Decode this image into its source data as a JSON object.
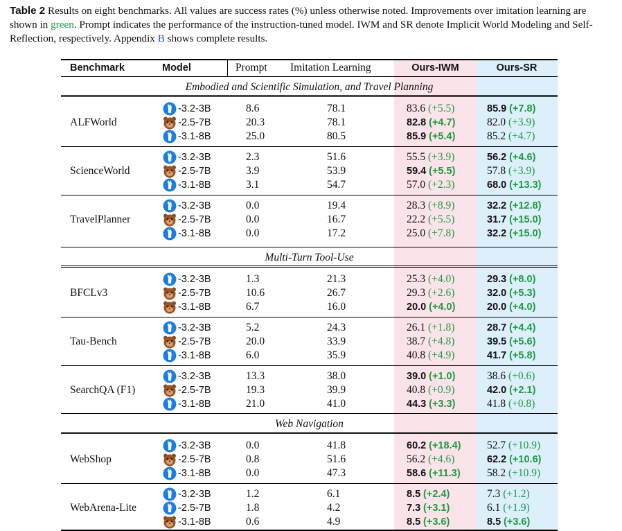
{
  "caption": {
    "label": "Table 2",
    "part1": "Results on eight benchmarks. All values are success rates (%) unless otherwise noted. Improvements over imitation learning are shown in ",
    "green_word": "green",
    "part2": ". Prompt indicates the performance of the instruction-tuned model. IWM and SR denote Implicit World Modeling and Self-Reflection, respectively. Appendix ",
    "appendix_ref": "B",
    "part3": " shows complete results."
  },
  "headers": {
    "benchmark": "Benchmark",
    "model": "Model",
    "prompt": "Prompt",
    "imitation": "Imitation Learning",
    "iwm": "Ours-IWM",
    "sr": "Ours-SR"
  },
  "colors": {
    "iwm_bg": "#fbe3ea",
    "sr_bg": "#dceffb",
    "improvement": "#1f9a3f"
  },
  "sections": [
    {
      "title": "Embodied and Scientific Simulation, and Travel Planning",
      "groups": [
        0,
        1,
        2
      ]
    },
    {
      "title": "Multi-Turn Tool-Use",
      "groups": [
        3,
        4,
        5
      ]
    },
    {
      "title": "Web Navigation",
      "groups": [
        6,
        7
      ]
    }
  ],
  "groups": [
    {
      "benchmark": "ALFWorld",
      "rows": [
        {
          "icon": "llama-icon",
          "model": "-3.2-3B",
          "prompt": "8.6",
          "imitation": "78.1",
          "iwm": "83.6",
          "iwm_imp": "(+5.5)",
          "iwm_bold": false,
          "sr": "85.9",
          "sr_imp": "(+7.8)",
          "sr_bold": true
        },
        {
          "icon": "qwen-bear-icon",
          "model": "-2.5-7B",
          "prompt": "20.3",
          "imitation": "78.1",
          "iwm": "82.8",
          "iwm_imp": "(+4.7)",
          "iwm_bold": true,
          "sr": "82.0",
          "sr_imp": "(+3.9)",
          "sr_bold": false
        },
        {
          "icon": "llama-icon",
          "model": "-3.1-8B",
          "prompt": "25.0",
          "imitation": "80.5",
          "iwm": "85.9",
          "iwm_imp": "(+5.4)",
          "iwm_bold": true,
          "sr": "85.2",
          "sr_imp": "(+4.7)",
          "sr_bold": false
        }
      ]
    },
    {
      "benchmark": "ScienceWorld",
      "rows": [
        {
          "icon": "llama-icon",
          "model": "-3.2-3B",
          "prompt": "2.3",
          "imitation": "51.6",
          "iwm": "55.5",
          "iwm_imp": "(+3.9)",
          "iwm_bold": false,
          "sr": "56.2",
          "sr_imp": "(+4.6)",
          "sr_bold": true
        },
        {
          "icon": "qwen-bear-icon",
          "model": "-2.5-7B",
          "prompt": "3.9",
          "imitation": "53.9",
          "iwm": "59.4",
          "iwm_imp": "(+5.5)",
          "iwm_bold": true,
          "sr": "57.8",
          "sr_imp": "(+3.9)",
          "sr_bold": false
        },
        {
          "icon": "llama-icon",
          "model": "-3.1-8B",
          "prompt": "3.1",
          "imitation": "54.7",
          "iwm": "57.0",
          "iwm_imp": "(+2.3)",
          "iwm_bold": false,
          "sr": "68.0",
          "sr_imp": "(+13.3)",
          "sr_bold": true
        }
      ]
    },
    {
      "benchmark": "TravelPlanner",
      "rows": [
        {
          "icon": "llama-icon",
          "model": "-3.2-3B",
          "prompt": "0.0",
          "imitation": "19.4",
          "iwm": "28.3",
          "iwm_imp": "(+8.9)",
          "iwm_bold": false,
          "sr": "32.2",
          "sr_imp": "(+12.8)",
          "sr_bold": true
        },
        {
          "icon": "qwen-bear-icon",
          "model": "-2.5-7B",
          "prompt": "0.0",
          "imitation": "16.7",
          "iwm": "22.2",
          "iwm_imp": "(+5.5)",
          "iwm_bold": false,
          "sr": "31.7",
          "sr_imp": "(+15.0)",
          "sr_bold": true
        },
        {
          "icon": "llama-icon",
          "model": "-3.1-8B",
          "prompt": "0.0",
          "imitation": "17.2",
          "iwm": "25.0",
          "iwm_imp": "(+7.8)",
          "iwm_bold": false,
          "sr": "32.2",
          "sr_imp": "(+15.0)",
          "sr_bold": true
        }
      ]
    },
    {
      "benchmark": "BFCLv3",
      "rows": [
        {
          "icon": "llama-icon",
          "model": "-3.2-3B",
          "prompt": "1.3",
          "imitation": "21.3",
          "iwm": "25.3",
          "iwm_imp": "(+4.0)",
          "iwm_bold": false,
          "sr": "29.3",
          "sr_imp": "(+8.0)",
          "sr_bold": true
        },
        {
          "icon": "qwen-bear-icon",
          "model": "-2.5-7B",
          "prompt": "10.6",
          "imitation": "26.7",
          "iwm": "29.3",
          "iwm_imp": "(+2.6)",
          "iwm_bold": false,
          "sr": "32.0",
          "sr_imp": "(+5.3)",
          "sr_bold": true
        },
        {
          "icon": "qwen-bear-icon",
          "model": "-3.1-8B",
          "prompt": "6.7",
          "imitation": "16.0",
          "iwm": "20.0",
          "iwm_imp": "(+4.0)",
          "iwm_bold": true,
          "sr": "20.0",
          "sr_imp": "(+4.0)",
          "sr_bold": true
        }
      ]
    },
    {
      "benchmark": "Tau-Bench",
      "rows": [
        {
          "icon": "llama-icon",
          "model": "-3.2-3B",
          "prompt": "5.2",
          "imitation": "24.3",
          "iwm": "26.1",
          "iwm_imp": "(+1.8)",
          "iwm_bold": false,
          "sr": "28.7",
          "sr_imp": "(+4.4)",
          "sr_bold": true
        },
        {
          "icon": "qwen-bear-icon",
          "model": "-2.5-7B",
          "prompt": "20.0",
          "imitation": "33.9",
          "iwm": "38.7",
          "iwm_imp": "(+4.8)",
          "iwm_bold": false,
          "sr": "39.5",
          "sr_imp": "(+5.6)",
          "sr_bold": true
        },
        {
          "icon": "llama-icon",
          "model": "-3.1-8B",
          "prompt": "6.0",
          "imitation": "35.9",
          "iwm": "40.8",
          "iwm_imp": "(+4.9)",
          "iwm_bold": false,
          "sr": "41.7",
          "sr_imp": "(+5.8)",
          "sr_bold": true
        }
      ]
    },
    {
      "benchmark": "SearchQA (F1)",
      "rows": [
        {
          "icon": "llama-icon",
          "model": "-3.2-3B",
          "prompt": "13.3",
          "imitation": "38.0",
          "iwm": "39.0",
          "iwm_imp": "(+1.0)",
          "iwm_bold": true,
          "sr": "38.6",
          "sr_imp": "(+0.6)",
          "sr_bold": false
        },
        {
          "icon": "qwen-bear-icon",
          "model": "-2.5-7B",
          "prompt": "19.3",
          "imitation": "39.9",
          "iwm": "40.8",
          "iwm_imp": "(+0.9)",
          "iwm_bold": false,
          "sr": "42.0",
          "sr_imp": "(+2.1)",
          "sr_bold": true
        },
        {
          "icon": "llama-icon",
          "model": "-3.1-8B",
          "prompt": "21.0",
          "imitation": "41.0",
          "iwm": "44.3",
          "iwm_imp": "(+3.3)",
          "iwm_bold": true,
          "sr": "41.8",
          "sr_imp": "(+0.8)",
          "sr_bold": false
        }
      ]
    },
    {
      "benchmark": "WebShop",
      "rows": [
        {
          "icon": "llama-icon",
          "model": "-3.2-3B",
          "prompt": "0.0",
          "imitation": "41.8",
          "iwm": "60.2",
          "iwm_imp": "(+18.4)",
          "iwm_bold": true,
          "sr": "52.7",
          "sr_imp": "(+10.9)",
          "sr_bold": false
        },
        {
          "icon": "qwen-bear-icon",
          "model": "-2.5-7B",
          "prompt": "0.8",
          "imitation": "51.6",
          "iwm": "56.2",
          "iwm_imp": "(+4.6)",
          "iwm_bold": false,
          "sr": "62.2",
          "sr_imp": "(+10.6)",
          "sr_bold": true
        },
        {
          "icon": "llama-icon",
          "model": "-3.1-8B",
          "prompt": "0.0",
          "imitation": "47.3",
          "iwm": "58.6",
          "iwm_imp": "(+11.3)",
          "iwm_bold": true,
          "sr": "58.2",
          "sr_imp": "(+10.9)",
          "sr_bold": false
        }
      ]
    },
    {
      "benchmark": "WebArena-Lite",
      "rows": [
        {
          "icon": "llama-icon",
          "model": "-3.2-3B",
          "prompt": "1.2",
          "imitation": "6.1",
          "iwm": "8.5",
          "iwm_imp": "(+2.4)",
          "iwm_bold": true,
          "sr": "7.3",
          "sr_imp": "(+1.2)",
          "sr_bold": false
        },
        {
          "icon": "llama-icon",
          "model": "-2.5-7B",
          "prompt": "1.8",
          "imitation": "4.2",
          "iwm": "7.3",
          "iwm_imp": "(+3.1)",
          "iwm_bold": true,
          "sr": "6.1",
          "sr_imp": "(+1.9)",
          "sr_bold": false
        },
        {
          "icon": "qwen-bear-icon",
          "model": "-3.1-8B",
          "prompt": "0.6",
          "imitation": "4.9",
          "iwm": "8.5",
          "iwm_imp": "(+3.6)",
          "iwm_bold": true,
          "sr": "8.5",
          "sr_imp": "(+3.6)",
          "sr_bold": true
        }
      ]
    }
  ]
}
